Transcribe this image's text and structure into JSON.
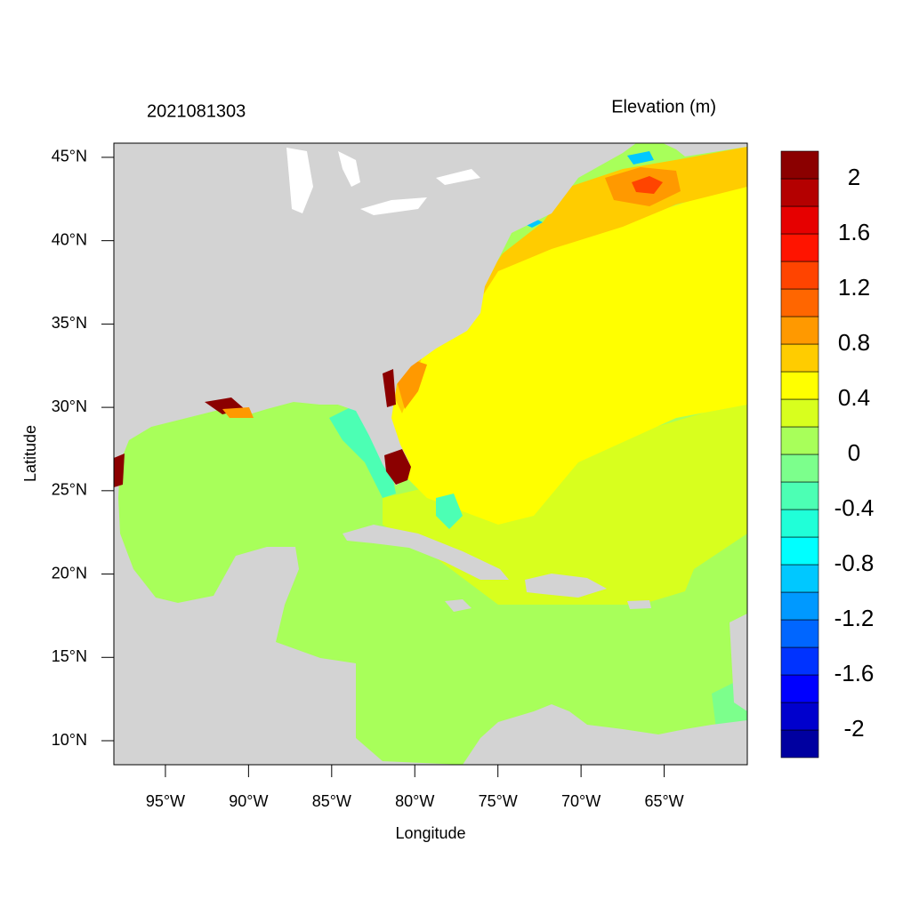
{
  "chart_data": {
    "type": "map",
    "title_left": "2021081303",
    "title_right": "Elevation (m)",
    "x_label": "Longitude",
    "y_label": "Latitude",
    "xlim": [
      -98.1,
      -60
    ],
    "ylim": [
      8.56,
      45.85
    ],
    "xticks": [
      {
        "value": -95,
        "label": "95°W"
      },
      {
        "value": -90,
        "label": "90°W"
      },
      {
        "value": -85,
        "label": "85°W"
      },
      {
        "value": -80,
        "label": "80°W"
      },
      {
        "value": -75,
        "label": "75°W"
      },
      {
        "value": -70,
        "label": "70°W"
      },
      {
        "value": -65,
        "label": "65°W"
      }
    ],
    "yticks": [
      {
        "value": 10,
        "label": "10°N"
      },
      {
        "value": 15,
        "label": "15°N"
      },
      {
        "value": 20,
        "label": "20°N"
      },
      {
        "value": 25,
        "label": "25°N"
      },
      {
        "value": 30,
        "label": "30°N"
      },
      {
        "value": 35,
        "label": "35°N"
      },
      {
        "value": 40,
        "label": "40°N"
      },
      {
        "value": 45,
        "label": "45°N"
      }
    ],
    "colorbar": {
      "levels": [
        -2,
        -1.8,
        -1.6,
        -1.4,
        -1.2,
        -1,
        -0.8,
        -0.6,
        -0.4,
        -0.2,
        0,
        0.2,
        0.4,
        0.6,
        0.8,
        1,
        1.2,
        1.4,
        1.6,
        1.8,
        2
      ],
      "ticks": [
        2,
        1.6,
        1.2,
        0.8,
        0.4,
        0,
        -0.4,
        -0.8,
        -1.2,
        -1.6,
        -2
      ],
      "colors": [
        "#0000a0",
        "#0000cd",
        "#0000ff",
        "#0033ff",
        "#0066ff",
        "#0099ff",
        "#00c8ff",
        "#00ffff",
        "#20ffd8",
        "#4cffb4",
        "#7cff8c",
        "#a8ff5a",
        "#d8ff1e",
        "#ffff00",
        "#ffcc00",
        "#ff9900",
        "#ff6600",
        "#ff4400",
        "#ff1400",
        "#e60000",
        "#b40000",
        "#8b0000"
      ]
    }
  }
}
